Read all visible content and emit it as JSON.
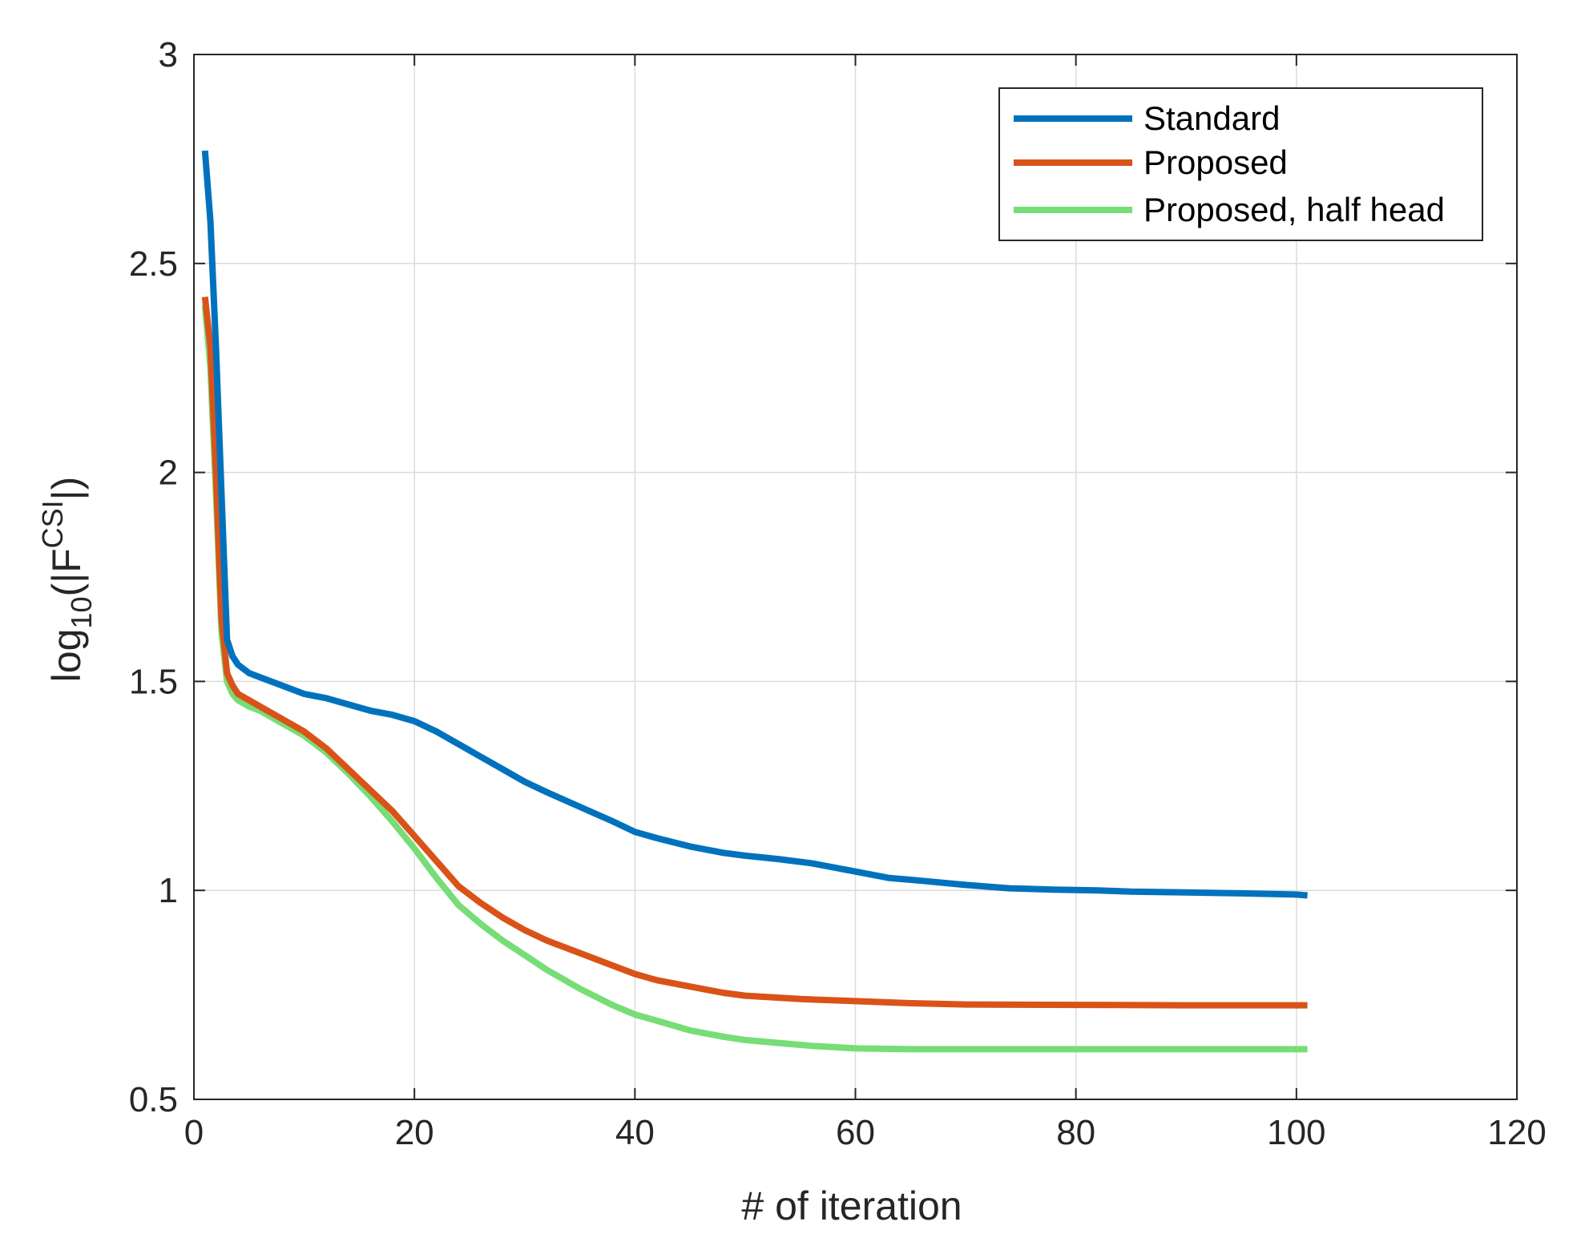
{
  "chart_data": {
    "type": "line",
    "title": "",
    "xlabel": "# of iteration",
    "ylabel": {
      "prefix": "log",
      "sub": "10",
      "open": "(|F",
      "sup": "CSI",
      "close": "|)"
    },
    "xlim": [
      0,
      120
    ],
    "ylim": [
      0.5,
      3
    ],
    "xticks": [
      0,
      20,
      40,
      60,
      80,
      100,
      120
    ],
    "yticks": [
      0.5,
      1,
      1.5,
      2,
      2.5,
      3
    ],
    "xtick_labels": [
      "0",
      "20",
      "40",
      "60",
      "80",
      "100",
      "120"
    ],
    "ytick_labels": [
      "0.5",
      "1",
      "1.5",
      "2",
      "2.5",
      "3"
    ],
    "grid": true,
    "legend_position": "top-right",
    "series": [
      {
        "name": "Standard",
        "color": "#0072BD",
        "x": [
          1,
          1.5,
          2,
          2.5,
          3,
          3.5,
          4,
          5,
          6,
          8,
          10,
          12,
          14,
          16,
          18,
          20,
          22,
          24,
          26,
          28,
          30,
          32,
          35,
          38,
          40,
          42,
          45,
          48,
          50,
          53,
          56,
          60,
          63,
          66,
          70,
          74,
          78,
          82,
          85,
          90,
          95,
          100,
          101
        ],
        "values": [
          2.77,
          2.6,
          2.3,
          1.95,
          1.6,
          1.56,
          1.54,
          1.52,
          1.51,
          1.49,
          1.47,
          1.46,
          1.445,
          1.43,
          1.42,
          1.405,
          1.38,
          1.35,
          1.32,
          1.29,
          1.26,
          1.235,
          1.2,
          1.165,
          1.14,
          1.125,
          1.105,
          1.09,
          1.083,
          1.075,
          1.065,
          1.045,
          1.03,
          1.023,
          1.013,
          1.005,
          1.002,
          1.0,
          0.997,
          0.995,
          0.993,
          0.99,
          0.988
        ]
      },
      {
        "name": "Proposed",
        "color": "#D95319",
        "x": [
          1,
          1.5,
          2,
          2.5,
          3,
          3.5,
          4,
          5,
          6,
          8,
          10,
          12,
          14,
          16,
          18,
          20,
          22,
          24,
          26,
          28,
          30,
          32,
          35,
          38,
          40,
          42,
          45,
          48,
          50,
          55,
          60,
          65,
          70,
          80,
          90,
          100,
          101
        ],
        "values": [
          2.42,
          2.3,
          2.0,
          1.65,
          1.52,
          1.49,
          1.47,
          1.455,
          1.44,
          1.41,
          1.38,
          1.34,
          1.29,
          1.24,
          1.19,
          1.13,
          1.07,
          1.01,
          0.97,
          0.935,
          0.905,
          0.88,
          0.85,
          0.82,
          0.8,
          0.785,
          0.77,
          0.755,
          0.748,
          0.74,
          0.735,
          0.73,
          0.727,
          0.726,
          0.725,
          0.725,
          0.725
        ]
      },
      {
        "name": "Proposed, half head",
        "color": "#77DD77",
        "x": [
          1,
          1.5,
          2,
          2.5,
          3,
          3.5,
          4,
          5,
          6,
          8,
          10,
          12,
          14,
          16,
          18,
          20,
          22,
          24,
          26,
          28,
          30,
          32,
          35,
          38,
          40,
          42,
          45,
          48,
          50,
          53,
          56,
          60,
          65,
          70,
          80,
          90,
          100,
          101
        ],
        "values": [
          2.4,
          2.25,
          1.95,
          1.62,
          1.5,
          1.47,
          1.455,
          1.44,
          1.43,
          1.4,
          1.37,
          1.33,
          1.28,
          1.225,
          1.165,
          1.1,
          1.03,
          0.965,
          0.92,
          0.88,
          0.845,
          0.81,
          0.765,
          0.725,
          0.703,
          0.688,
          0.665,
          0.65,
          0.642,
          0.635,
          0.628,
          0.622,
          0.62,
          0.62,
          0.62,
          0.62,
          0.62,
          0.62
        ]
      }
    ]
  }
}
